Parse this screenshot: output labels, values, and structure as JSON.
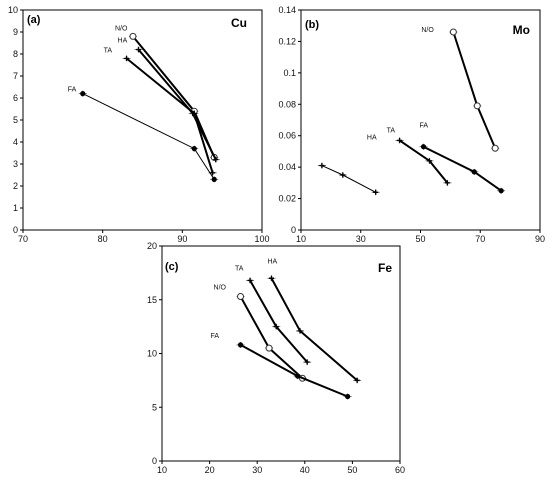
{
  "chart_data": [
    {
      "type": "line",
      "panel_label": "(a)",
      "element": "Cu",
      "xlim": [
        70,
        100
      ],
      "ylim": [
        0,
        10
      ],
      "xticks": [
        70,
        80,
        90,
        100
      ],
      "yticks": [
        0,
        1,
        2,
        3,
        4,
        5,
        6,
        7,
        8,
        9,
        10
      ],
      "series": [
        {
          "name": "N/O",
          "marker": "open",
          "weight": "thick",
          "x": [
            83.8,
            91.5,
            94.0
          ],
          "y": [
            8.8,
            5.4,
            3.3
          ]
        },
        {
          "name": "HA",
          "marker": "plus",
          "weight": "thick",
          "x": [
            84.5,
            91.3,
            94.2
          ],
          "y": [
            8.2,
            5.3,
            3.2
          ]
        },
        {
          "name": "TA",
          "marker": "plus",
          "weight": "thick",
          "x": [
            83.0,
            91.5,
            93.8
          ],
          "y": [
            7.8,
            5.3,
            2.6
          ]
        },
        {
          "name": "FA",
          "marker": "filled",
          "weight": "thin",
          "x": [
            77.5,
            91.5,
            94.0
          ],
          "y": [
            6.2,
            3.7,
            2.3
          ]
        }
      ]
    },
    {
      "type": "line",
      "panel_label": "(b)",
      "element": "Mo",
      "xlim": [
        10,
        90
      ],
      "ylim": [
        0,
        0.14
      ],
      "xticks": [
        10,
        30,
        50,
        70,
        90
      ],
      "yticks": [
        "0",
        "0.02",
        "0.04",
        "0.06",
        "0.08",
        "0.1",
        "0.12",
        "0.14"
      ],
      "series": [
        {
          "name": "N/O",
          "marker": "open",
          "weight": "thick",
          "x": [
            61,
            69,
            75
          ],
          "y": [
            0.126,
            0.079,
            0.052
          ]
        },
        {
          "name": "TA",
          "marker": "plus",
          "weight": "thick",
          "x": [
            43,
            53,
            59
          ],
          "y": [
            0.057,
            0.044,
            0.03
          ]
        },
        {
          "name": "FA",
          "marker": "filled",
          "weight": "thick",
          "x": [
            51,
            68,
            77
          ],
          "y": [
            0.053,
            0.037,
            0.025
          ]
        },
        {
          "name": "HA",
          "marker": "plus",
          "weight": "thin",
          "x": [
            17,
            24,
            35
          ],
          "y": [
            0.041,
            0.035,
            0.024
          ]
        }
      ]
    },
    {
      "type": "line",
      "panel_label": "(c)",
      "element": "Fe",
      "xlim": [
        10,
        60
      ],
      "ylim": [
        0,
        20
      ],
      "xticks": [
        10,
        20,
        30,
        40,
        50,
        60
      ],
      "yticks": [
        0,
        5,
        10,
        15,
        20
      ],
      "series": [
        {
          "name": "N/O",
          "marker": "open",
          "weight": "thick",
          "x": [
            26.5,
            32.5,
            39.5
          ],
          "y": [
            15.3,
            10.5,
            7.7
          ]
        },
        {
          "name": "TA",
          "marker": "plus",
          "weight": "thick",
          "x": [
            28.5,
            34,
            40.5
          ],
          "y": [
            16.8,
            12.5,
            9.2
          ]
        },
        {
          "name": "HA",
          "marker": "plus",
          "weight": "thick",
          "x": [
            33,
            39,
            51
          ],
          "y": [
            17.0,
            12.1,
            7.5
          ]
        },
        {
          "name": "FA",
          "marker": "filled",
          "weight": "thick",
          "x": [
            26.5,
            38.5,
            49
          ],
          "y": [
            10.8,
            7.9,
            6.0
          ]
        }
      ]
    }
  ]
}
